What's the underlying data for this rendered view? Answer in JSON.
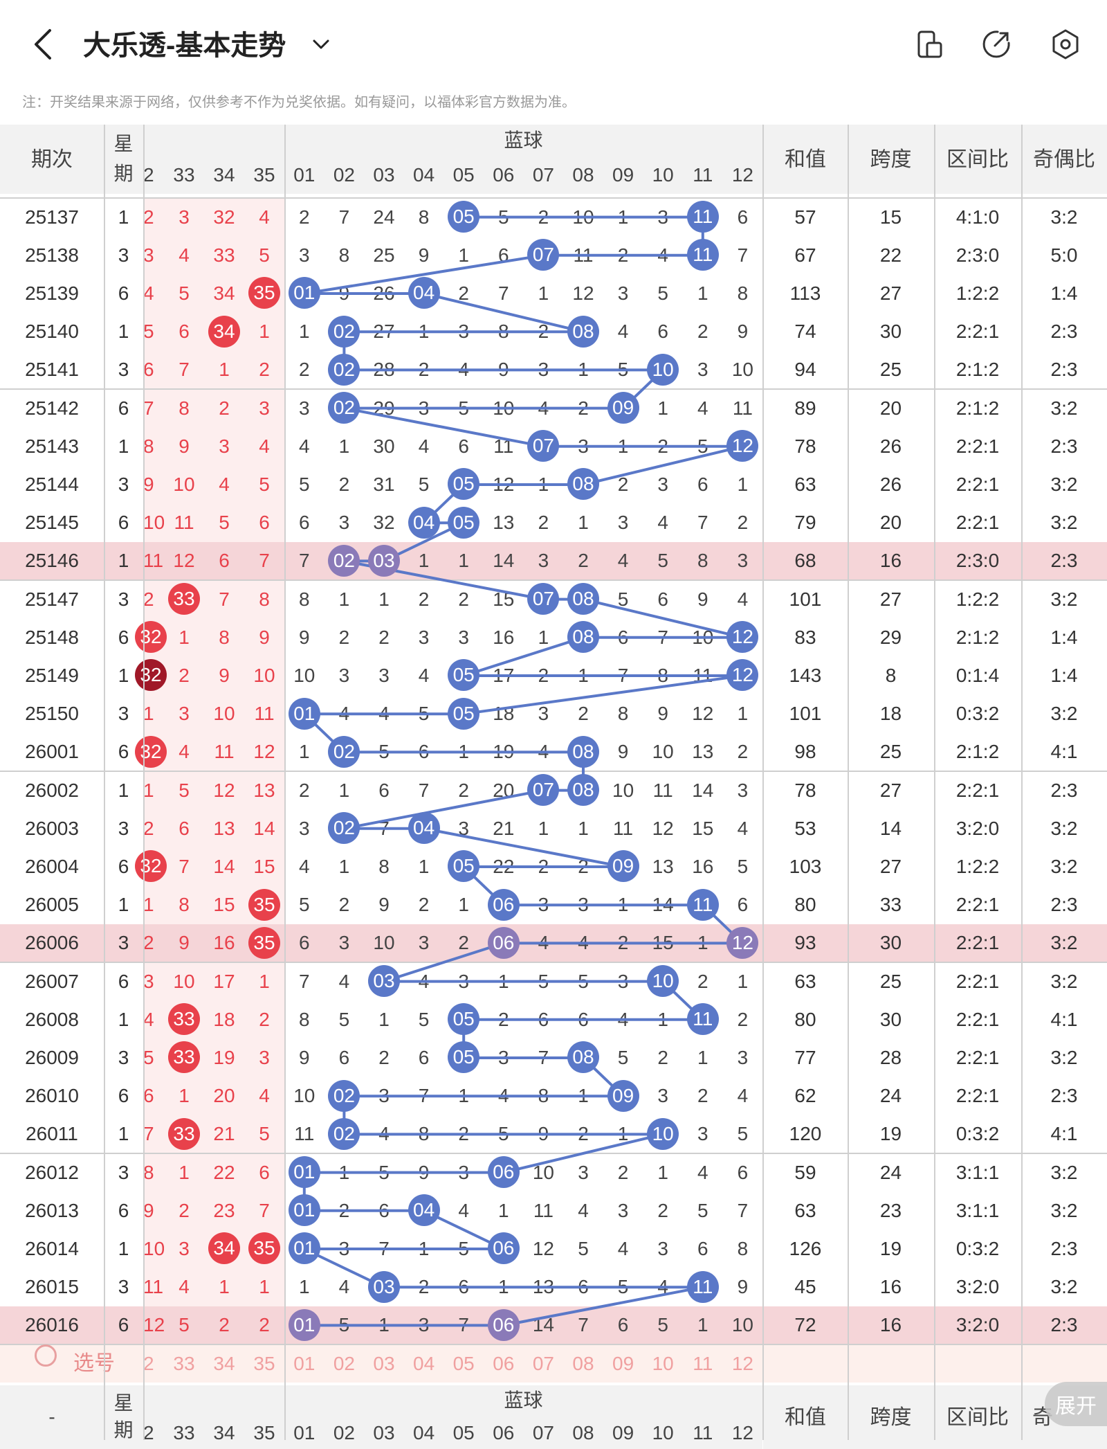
{
  "header": {
    "title": "大乐透-基本走势",
    "back_icon": "back-arrow-icon",
    "dropdown_icon": "chevron-down-icon",
    "actions": [
      {
        "name": "layout-switch-icon"
      },
      {
        "name": "share-icon"
      },
      {
        "name": "settings-icon"
      }
    ]
  },
  "notice": "注：开奖结果来源于网络，仅供参考不作为兑奖依据。如有疑问，以福体彩官方数据为准。",
  "columns": {
    "period": "期次",
    "week_line1": "星",
    "week_line2": "期",
    "blue_group": "蓝球",
    "red_cols": [
      "2",
      "33",
      "34",
      "35"
    ],
    "blue_cols": [
      "01",
      "02",
      "03",
      "04",
      "05",
      "06",
      "07",
      "08",
      "09",
      "10",
      "11",
      "12"
    ],
    "sum": "和值",
    "span": "跨度",
    "zone": "区间比",
    "odd": "奇偶比"
  },
  "colors": {
    "red_ball": "#e8414b",
    "red_dark": "#a01828",
    "blue_ball": "#5a78c8",
    "purple_ball": "#8a7ab8",
    "line": "#5a78c8",
    "highlight_row": "#f5d5d8",
    "red_col_bg": "#fdeeee"
  },
  "rows": [
    {
      "p": "25137",
      "w": "1",
      "r": [
        "2",
        "3",
        "32",
        "4"
      ],
      "rb": [],
      "b": [
        "2",
        "7",
        "24",
        "8",
        "05",
        "5",
        "2",
        "10",
        "1",
        "3",
        "11",
        "6"
      ],
      "bb": [
        4,
        10
      ],
      "s": "57",
      "sp": "15",
      "z": "4:1:0",
      "o": "3:2"
    },
    {
      "p": "25138",
      "w": "3",
      "r": [
        "3",
        "4",
        "33",
        "5"
      ],
      "rb": [],
      "b": [
        "3",
        "8",
        "25",
        "9",
        "1",
        "6",
        "07",
        "11",
        "2",
        "4",
        "11",
        "7"
      ],
      "bb": [
        6,
        10
      ],
      "s": "67",
      "sp": "22",
      "z": "2:3:0",
      "o": "5:0"
    },
    {
      "p": "25139",
      "w": "6",
      "r": [
        "4",
        "5",
        "34",
        "35"
      ],
      "rb": [
        3
      ],
      "b": [
        "01",
        "9",
        "26",
        "04",
        "2",
        "7",
        "1",
        "12",
        "3",
        "5",
        "1",
        "8"
      ],
      "bb": [
        0,
        3
      ],
      "s": "113",
      "sp": "27",
      "z": "1:2:2",
      "o": "1:4"
    },
    {
      "p": "25140",
      "w": "1",
      "r": [
        "5",
        "6",
        "34",
        "1"
      ],
      "rb": [
        2
      ],
      "b": [
        "1",
        "02",
        "27",
        "1",
        "3",
        "8",
        "2",
        "08",
        "4",
        "6",
        "2",
        "9"
      ],
      "bb": [
        1,
        7
      ],
      "s": "74",
      "sp": "30",
      "z": "2:2:1",
      "o": "2:3"
    },
    {
      "p": "25141",
      "w": "3",
      "r": [
        "6",
        "7",
        "1",
        "2"
      ],
      "rb": [],
      "b": [
        "2",
        "02",
        "28",
        "2",
        "4",
        "9",
        "3",
        "1",
        "5",
        "10",
        "3",
        "10"
      ],
      "bb": [
        1,
        9
      ],
      "s": "94",
      "sp": "25",
      "z": "2:1:2",
      "o": "2:3"
    },
    {
      "p": "25142",
      "w": "6",
      "r": [
        "7",
        "8",
        "2",
        "3"
      ],
      "rb": [],
      "b": [
        "3",
        "02",
        "29",
        "3",
        "5",
        "10",
        "4",
        "2",
        "09",
        "1",
        "4",
        "11"
      ],
      "bb": [
        1,
        8
      ],
      "s": "89",
      "sp": "20",
      "z": "2:1:2",
      "o": "3:2"
    },
    {
      "p": "25143",
      "w": "1",
      "r": [
        "8",
        "9",
        "3",
        "4"
      ],
      "rb": [],
      "b": [
        "4",
        "1",
        "30",
        "4",
        "6",
        "11",
        "07",
        "3",
        "1",
        "2",
        "5",
        "12"
      ],
      "bb": [
        6,
        11
      ],
      "s": "78",
      "sp": "26",
      "z": "2:2:1",
      "o": "2:3"
    },
    {
      "p": "25144",
      "w": "3",
      "r": [
        "9",
        "10",
        "4",
        "5"
      ],
      "rb": [],
      "b": [
        "5",
        "2",
        "31",
        "5",
        "05",
        "12",
        "1",
        "08",
        "2",
        "3",
        "6",
        "1"
      ],
      "bb": [
        4,
        7
      ],
      "s": "63",
      "sp": "26",
      "z": "2:2:1",
      "o": "3:2"
    },
    {
      "p": "25145",
      "w": "6",
      "r": [
        "10",
        "11",
        "5",
        "6"
      ],
      "rb": [],
      "b": [
        "6",
        "3",
        "32",
        "04",
        "05",
        "13",
        "2",
        "1",
        "3",
        "4",
        "7",
        "2"
      ],
      "bb": [
        3,
        4
      ],
      "s": "79",
      "sp": "20",
      "z": "2:2:1",
      "o": "3:2"
    },
    {
      "p": "25146",
      "w": "1",
      "r": [
        "11",
        "12",
        "6",
        "7"
      ],
      "rb": [],
      "b": [
        "7",
        "02",
        "03",
        "1",
        "1",
        "14",
        "3",
        "2",
        "4",
        "5",
        "8",
        "3"
      ],
      "bb": [
        1,
        2
      ],
      "s": "68",
      "sp": "16",
      "z": "2:3:0",
      "o": "2:3",
      "hl": true
    },
    {
      "p": "25147",
      "w": "3",
      "r": [
        "2",
        "33",
        "7",
        "8"
      ],
      "rb": [
        1
      ],
      "b": [
        "8",
        "1",
        "1",
        "2",
        "2",
        "15",
        "07",
        "08",
        "5",
        "6",
        "9",
        "4"
      ],
      "bb": [
        6,
        7
      ],
      "s": "101",
      "sp": "27",
      "z": "1:2:2",
      "o": "3:2"
    },
    {
      "p": "25148",
      "w": "6",
      "r": [
        "32",
        "1",
        "8",
        "9"
      ],
      "rb": [
        0
      ],
      "b": [
        "9",
        "2",
        "2",
        "3",
        "3",
        "16",
        "1",
        "08",
        "6",
        "7",
        "10",
        "12"
      ],
      "bb": [
        7,
        11
      ],
      "s": "83",
      "sp": "29",
      "z": "2:1:2",
      "o": "1:4"
    },
    {
      "p": "25149",
      "w": "1",
      "r": [
        "32",
        "2",
        "9",
        "10"
      ],
      "rb": [
        0
      ],
      "rd": true,
      "b": [
        "10",
        "3",
        "3",
        "4",
        "05",
        "17",
        "2",
        "1",
        "7",
        "8",
        "11",
        "12"
      ],
      "bb": [
        4,
        11
      ],
      "s": "143",
      "sp": "8",
      "z": "0:1:4",
      "o": "1:4"
    },
    {
      "p": "25150",
      "w": "3",
      "r": [
        "1",
        "3",
        "10",
        "11"
      ],
      "rb": [],
      "b": [
        "01",
        "4",
        "4",
        "5",
        "05",
        "18",
        "3",
        "2",
        "8",
        "9",
        "12",
        "1"
      ],
      "bb": [
        0,
        4
      ],
      "s": "101",
      "sp": "18",
      "z": "0:3:2",
      "o": "3:2"
    },
    {
      "p": "26001",
      "w": "6",
      "r": [
        "32",
        "4",
        "11",
        "12"
      ],
      "rb": [
        0
      ],
      "b": [
        "1",
        "02",
        "5",
        "6",
        "1",
        "19",
        "4",
        "08",
        "9",
        "10",
        "13",
        "2"
      ],
      "bb": [
        1,
        7
      ],
      "s": "98",
      "sp": "25",
      "z": "2:1:2",
      "o": "4:1"
    },
    {
      "p": "26002",
      "w": "1",
      "r": [
        "1",
        "5",
        "12",
        "13"
      ],
      "rb": [],
      "b": [
        "2",
        "1",
        "6",
        "7",
        "2",
        "20",
        "07",
        "08",
        "10",
        "11",
        "14",
        "3"
      ],
      "bb": [
        6,
        7
      ],
      "s": "78",
      "sp": "27",
      "z": "2:2:1",
      "o": "2:3"
    },
    {
      "p": "26003",
      "w": "3",
      "r": [
        "2",
        "6",
        "13",
        "14"
      ],
      "rb": [],
      "b": [
        "3",
        "02",
        "7",
        "04",
        "3",
        "21",
        "1",
        "1",
        "11",
        "12",
        "15",
        "4"
      ],
      "bb": [
        1,
        3
      ],
      "s": "53",
      "sp": "14",
      "z": "3:2:0",
      "o": "3:2"
    },
    {
      "p": "26004",
      "w": "6",
      "r": [
        "32",
        "7",
        "14",
        "15"
      ],
      "rb": [
        0
      ],
      "b": [
        "4",
        "1",
        "8",
        "1",
        "05",
        "22",
        "2",
        "2",
        "09",
        "13",
        "16",
        "5"
      ],
      "bb": [
        4,
        8
      ],
      "s": "103",
      "sp": "27",
      "z": "1:2:2",
      "o": "3:2"
    },
    {
      "p": "26005",
      "w": "1",
      "r": [
        "1",
        "8",
        "15",
        "35"
      ],
      "rb": [
        3
      ],
      "b": [
        "5",
        "2",
        "9",
        "2",
        "1",
        "06",
        "3",
        "3",
        "1",
        "14",
        "11",
        "6"
      ],
      "bb": [
        5,
        10
      ],
      "s": "80",
      "sp": "33",
      "z": "2:2:1",
      "o": "2:3"
    },
    {
      "p": "26006",
      "w": "3",
      "r": [
        "2",
        "9",
        "16",
        "35"
      ],
      "rb": [
        3
      ],
      "b": [
        "6",
        "3",
        "10",
        "3",
        "2",
        "06",
        "4",
        "4",
        "2",
        "15",
        "1",
        "12"
      ],
      "bb": [
        5,
        11
      ],
      "s": "93",
      "sp": "30",
      "z": "2:2:1",
      "o": "3:2",
      "hl": true
    },
    {
      "p": "26007",
      "w": "6",
      "r": [
        "3",
        "10",
        "17",
        "1"
      ],
      "rb": [],
      "b": [
        "7",
        "4",
        "03",
        "4",
        "3",
        "1",
        "5",
        "5",
        "3",
        "10",
        "2",
        "1"
      ],
      "bb": [
        2,
        9
      ],
      "s": "63",
      "sp": "25",
      "z": "2:2:1",
      "o": "3:2"
    },
    {
      "p": "26008",
      "w": "1",
      "r": [
        "4",
        "33",
        "18",
        "2"
      ],
      "rb": [
        1
      ],
      "b": [
        "8",
        "5",
        "1",
        "5",
        "05",
        "2",
        "6",
        "6",
        "4",
        "1",
        "11",
        "2"
      ],
      "bb": [
        4,
        10
      ],
      "s": "80",
      "sp": "30",
      "z": "2:2:1",
      "o": "4:1"
    },
    {
      "p": "26009",
      "w": "3",
      "r": [
        "5",
        "33",
        "19",
        "3"
      ],
      "rb": [
        1
      ],
      "b": [
        "9",
        "6",
        "2",
        "6",
        "05",
        "3",
        "7",
        "08",
        "5",
        "2",
        "1",
        "3"
      ],
      "bb": [
        4,
        7
      ],
      "s": "77",
      "sp": "28",
      "z": "2:2:1",
      "o": "3:2"
    },
    {
      "p": "26010",
      "w": "6",
      "r": [
        "6",
        "1",
        "20",
        "4"
      ],
      "rb": [],
      "b": [
        "10",
        "02",
        "3",
        "7",
        "1",
        "4",
        "8",
        "1",
        "09",
        "3",
        "2",
        "4"
      ],
      "bb": [
        1,
        8
      ],
      "s": "62",
      "sp": "24",
      "z": "2:2:1",
      "o": "2:3"
    },
    {
      "p": "26011",
      "w": "1",
      "r": [
        "7",
        "33",
        "21",
        "5"
      ],
      "rb": [
        1
      ],
      "b": [
        "11",
        "02",
        "4",
        "8",
        "2",
        "5",
        "9",
        "2",
        "1",
        "10",
        "3",
        "5"
      ],
      "bb": [
        1,
        9
      ],
      "s": "120",
      "sp": "19",
      "z": "0:3:2",
      "o": "4:1"
    },
    {
      "p": "26012",
      "w": "3",
      "r": [
        "8",
        "1",
        "22",
        "6"
      ],
      "rb": [],
      "b": [
        "01",
        "1",
        "5",
        "9",
        "3",
        "06",
        "10",
        "3",
        "2",
        "1",
        "4",
        "6"
      ],
      "bb": [
        0,
        5
      ],
      "s": "59",
      "sp": "24",
      "z": "3:1:1",
      "o": "3:2"
    },
    {
      "p": "26013",
      "w": "6",
      "r": [
        "9",
        "2",
        "23",
        "7"
      ],
      "rb": [],
      "b": [
        "01",
        "2",
        "6",
        "04",
        "4",
        "1",
        "11",
        "4",
        "3",
        "2",
        "5",
        "7"
      ],
      "bb": [
        0,
        3
      ],
      "s": "63",
      "sp": "23",
      "z": "3:1:1",
      "o": "3:2"
    },
    {
      "p": "26014",
      "w": "1",
      "r": [
        "10",
        "3",
        "34",
        "35"
      ],
      "rb": [
        2,
        3
      ],
      "b": [
        "01",
        "3",
        "7",
        "1",
        "5",
        "06",
        "12",
        "5",
        "4",
        "3",
        "6",
        "8"
      ],
      "bb": [
        0,
        5
      ],
      "s": "126",
      "sp": "19",
      "z": "0:3:2",
      "o": "2:3"
    },
    {
      "p": "26015",
      "w": "3",
      "r": [
        "11",
        "4",
        "1",
        "1"
      ],
      "rb": [],
      "b": [
        "1",
        "4",
        "03",
        "2",
        "6",
        "1",
        "13",
        "6",
        "5",
        "4",
        "11",
        "9"
      ],
      "bb": [
        2,
        10
      ],
      "s": "45",
      "sp": "16",
      "z": "3:2:0",
      "o": "3:2"
    },
    {
      "p": "26016",
      "w": "6",
      "r": [
        "12",
        "5",
        "2",
        "2"
      ],
      "rb": [],
      "b": [
        "01",
        "5",
        "1",
        "3",
        "7",
        "06",
        "14",
        "7",
        "6",
        "5",
        "1",
        "10"
      ],
      "bb": [
        0,
        5
      ],
      "s": "72",
      "sp": "16",
      "z": "3:2:0",
      "o": "2:3",
      "hl": true
    }
  ],
  "select_row": {
    "label": "选号",
    "red": [
      "2",
      "33",
      "34",
      "35"
    ],
    "blue": [
      "01",
      "02",
      "03",
      "04",
      "05",
      "06",
      "07",
      "08",
      "09",
      "10",
      "11",
      "12"
    ]
  },
  "footer": {
    "period": "-",
    "week_line1": "星",
    "week_line2": "期",
    "blue_group": "蓝球",
    "sum": "和值",
    "span": "跨度",
    "zone": "区间比",
    "odd": "奇"
  },
  "expand_button": "展开"
}
